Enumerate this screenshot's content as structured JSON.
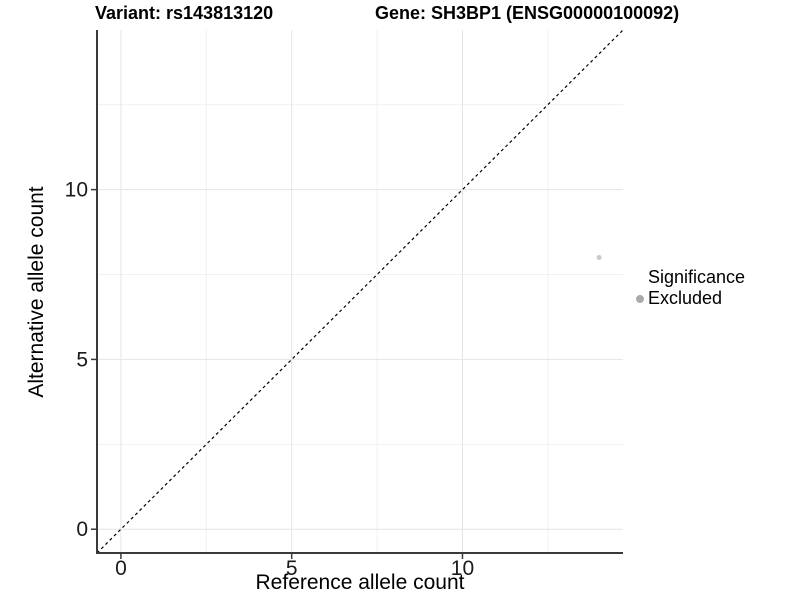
{
  "chart_data": {
    "type": "scatter",
    "titles": {
      "left": "Variant: rs143813120",
      "right": "Gene: SH3BP1 (ENSG00000100092)"
    },
    "xlabel": "Reference allele count",
    "ylabel": "Alternative allele count",
    "xlim": [
      -0.7,
      14.7
    ],
    "ylim": [
      -0.7,
      14.7
    ],
    "x_major_ticks": [
      0,
      5,
      10
    ],
    "y_major_ticks": [
      0,
      5,
      10
    ],
    "x_minor_ticks": [
      2.5,
      7.5,
      12.5
    ],
    "y_minor_ticks": [
      2.5,
      7.5,
      12.5
    ],
    "grid": {
      "major_color": "#e4e4e4",
      "minor_color": "#f1f1f1"
    },
    "points": [
      {
        "x": 14,
        "y": 8,
        "significance": "Excluded",
        "color": "#c9c9c9",
        "radius": 2.5
      }
    ],
    "reference_line": {
      "type": "identity",
      "style": "dashed",
      "color": "#000000",
      "from": [
        -0.7,
        -0.7
      ],
      "to": [
        14.7,
        14.7
      ]
    },
    "legend": {
      "position": "right",
      "title": "Significance",
      "items": [
        {
          "label": "Excluded",
          "color": "#ababab"
        }
      ]
    },
    "colors": {
      "axis_line": "#3a3a3a",
      "tick_label": "#1a1a1a",
      "title": "#000000"
    }
  }
}
